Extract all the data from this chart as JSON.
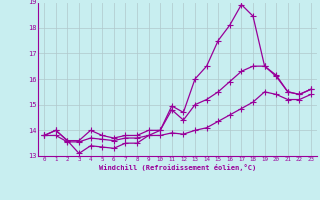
{
  "title": "",
  "xlabel": "Windchill (Refroidissement éolien,°C)",
  "background_color": "#c8eef0",
  "line_color": "#990099",
  "grid_color": "#b0c8cc",
  "xlim": [
    -0.5,
    23.5
  ],
  "ylim": [
    13,
    19
  ],
  "yticks": [
    13,
    14,
    15,
    16,
    17,
    18,
    19
  ],
  "xticks": [
    0,
    1,
    2,
    3,
    4,
    5,
    6,
    7,
    8,
    9,
    10,
    11,
    12,
    13,
    14,
    15,
    16,
    17,
    18,
    19,
    20,
    21,
    22,
    23
  ],
  "series1": [
    13.8,
    14.0,
    13.6,
    13.1,
    13.4,
    13.35,
    13.3,
    13.5,
    13.5,
    13.8,
    14.0,
    14.95,
    14.7,
    16.0,
    16.5,
    17.5,
    18.1,
    18.9,
    18.45,
    16.5,
    16.15,
    15.5,
    15.4,
    15.6
  ],
  "series2": [
    13.8,
    14.0,
    13.6,
    13.6,
    14.0,
    13.8,
    13.7,
    13.8,
    13.8,
    14.0,
    14.0,
    14.8,
    14.4,
    15.0,
    15.2,
    15.5,
    15.9,
    16.3,
    16.5,
    16.5,
    16.1,
    15.5,
    15.4,
    15.6
  ],
  "series3": [
    13.8,
    13.8,
    13.55,
    13.55,
    13.7,
    13.65,
    13.6,
    13.7,
    13.7,
    13.8,
    13.8,
    13.9,
    13.85,
    14.0,
    14.1,
    14.35,
    14.6,
    14.85,
    15.1,
    15.5,
    15.4,
    15.2,
    15.2,
    15.4
  ]
}
